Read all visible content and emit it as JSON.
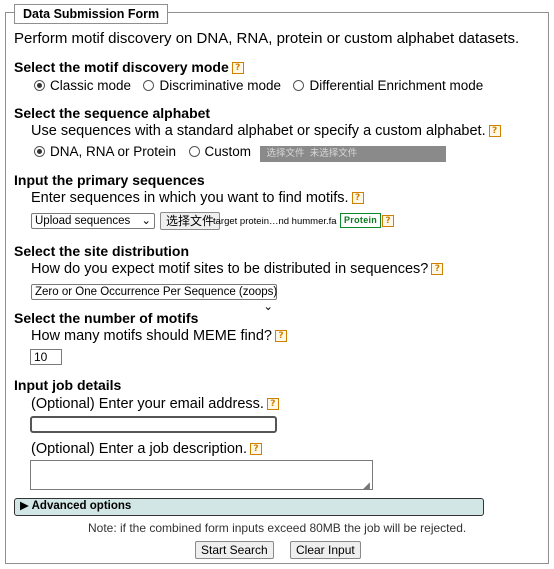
{
  "form": {
    "legend": "Data Submission Form",
    "intro": "Perform motif discovery on DNA, RNA, protein or custom alphabet datasets."
  },
  "mode": {
    "heading": "Select the motif discovery mode",
    "options": [
      "Classic mode",
      "Discriminative mode",
      "Differential Enrichment mode"
    ],
    "selected": "Classic mode"
  },
  "alphabet": {
    "heading": "Select the sequence alphabet",
    "description": "Use sequences with a standard alphabet or specify a custom alphabet.",
    "option_standard": "DNA, RNA or Protein",
    "option_custom": "Custom",
    "choose_file_label": "选择文件",
    "no_file_label": "未选择文件",
    "selected": "DNA, RNA or Protein"
  },
  "primary": {
    "heading": "Input the primary sequences",
    "description": "Enter sequences in which you want to find motifs.",
    "source_select": "Upload sequences",
    "choose_file_label": "选择文件",
    "filename": "target protein…nd hummer.fa",
    "alphabet_badge": "Protein"
  },
  "site": {
    "heading": "Select the site distribution",
    "description": "How do you expect motif sites to be distributed in sequences?",
    "select_value": "Zero or One Occurrence Per Sequence (zoops)"
  },
  "motifs": {
    "heading": "Select the number of motifs",
    "description": "How many motifs should MEME find?",
    "value": "10"
  },
  "job": {
    "heading": "Input job details",
    "email_label": "(Optional) Enter your email address.",
    "email_value": "",
    "description_label": "(Optional) Enter a job description.",
    "description_value": ""
  },
  "advanced": {
    "label": "▶ Advanced options"
  },
  "footer": {
    "note": "Note: if the combined form inputs exceed 80MB the job will be rejected.",
    "start_label": "Start Search",
    "clear_label": "Clear Input"
  },
  "help_icon_glyph": "?",
  "colors": {
    "help_icon": "#d08000",
    "protein_badge": "#0a8a2a",
    "advanced_bar": "#d2e6e6"
  }
}
